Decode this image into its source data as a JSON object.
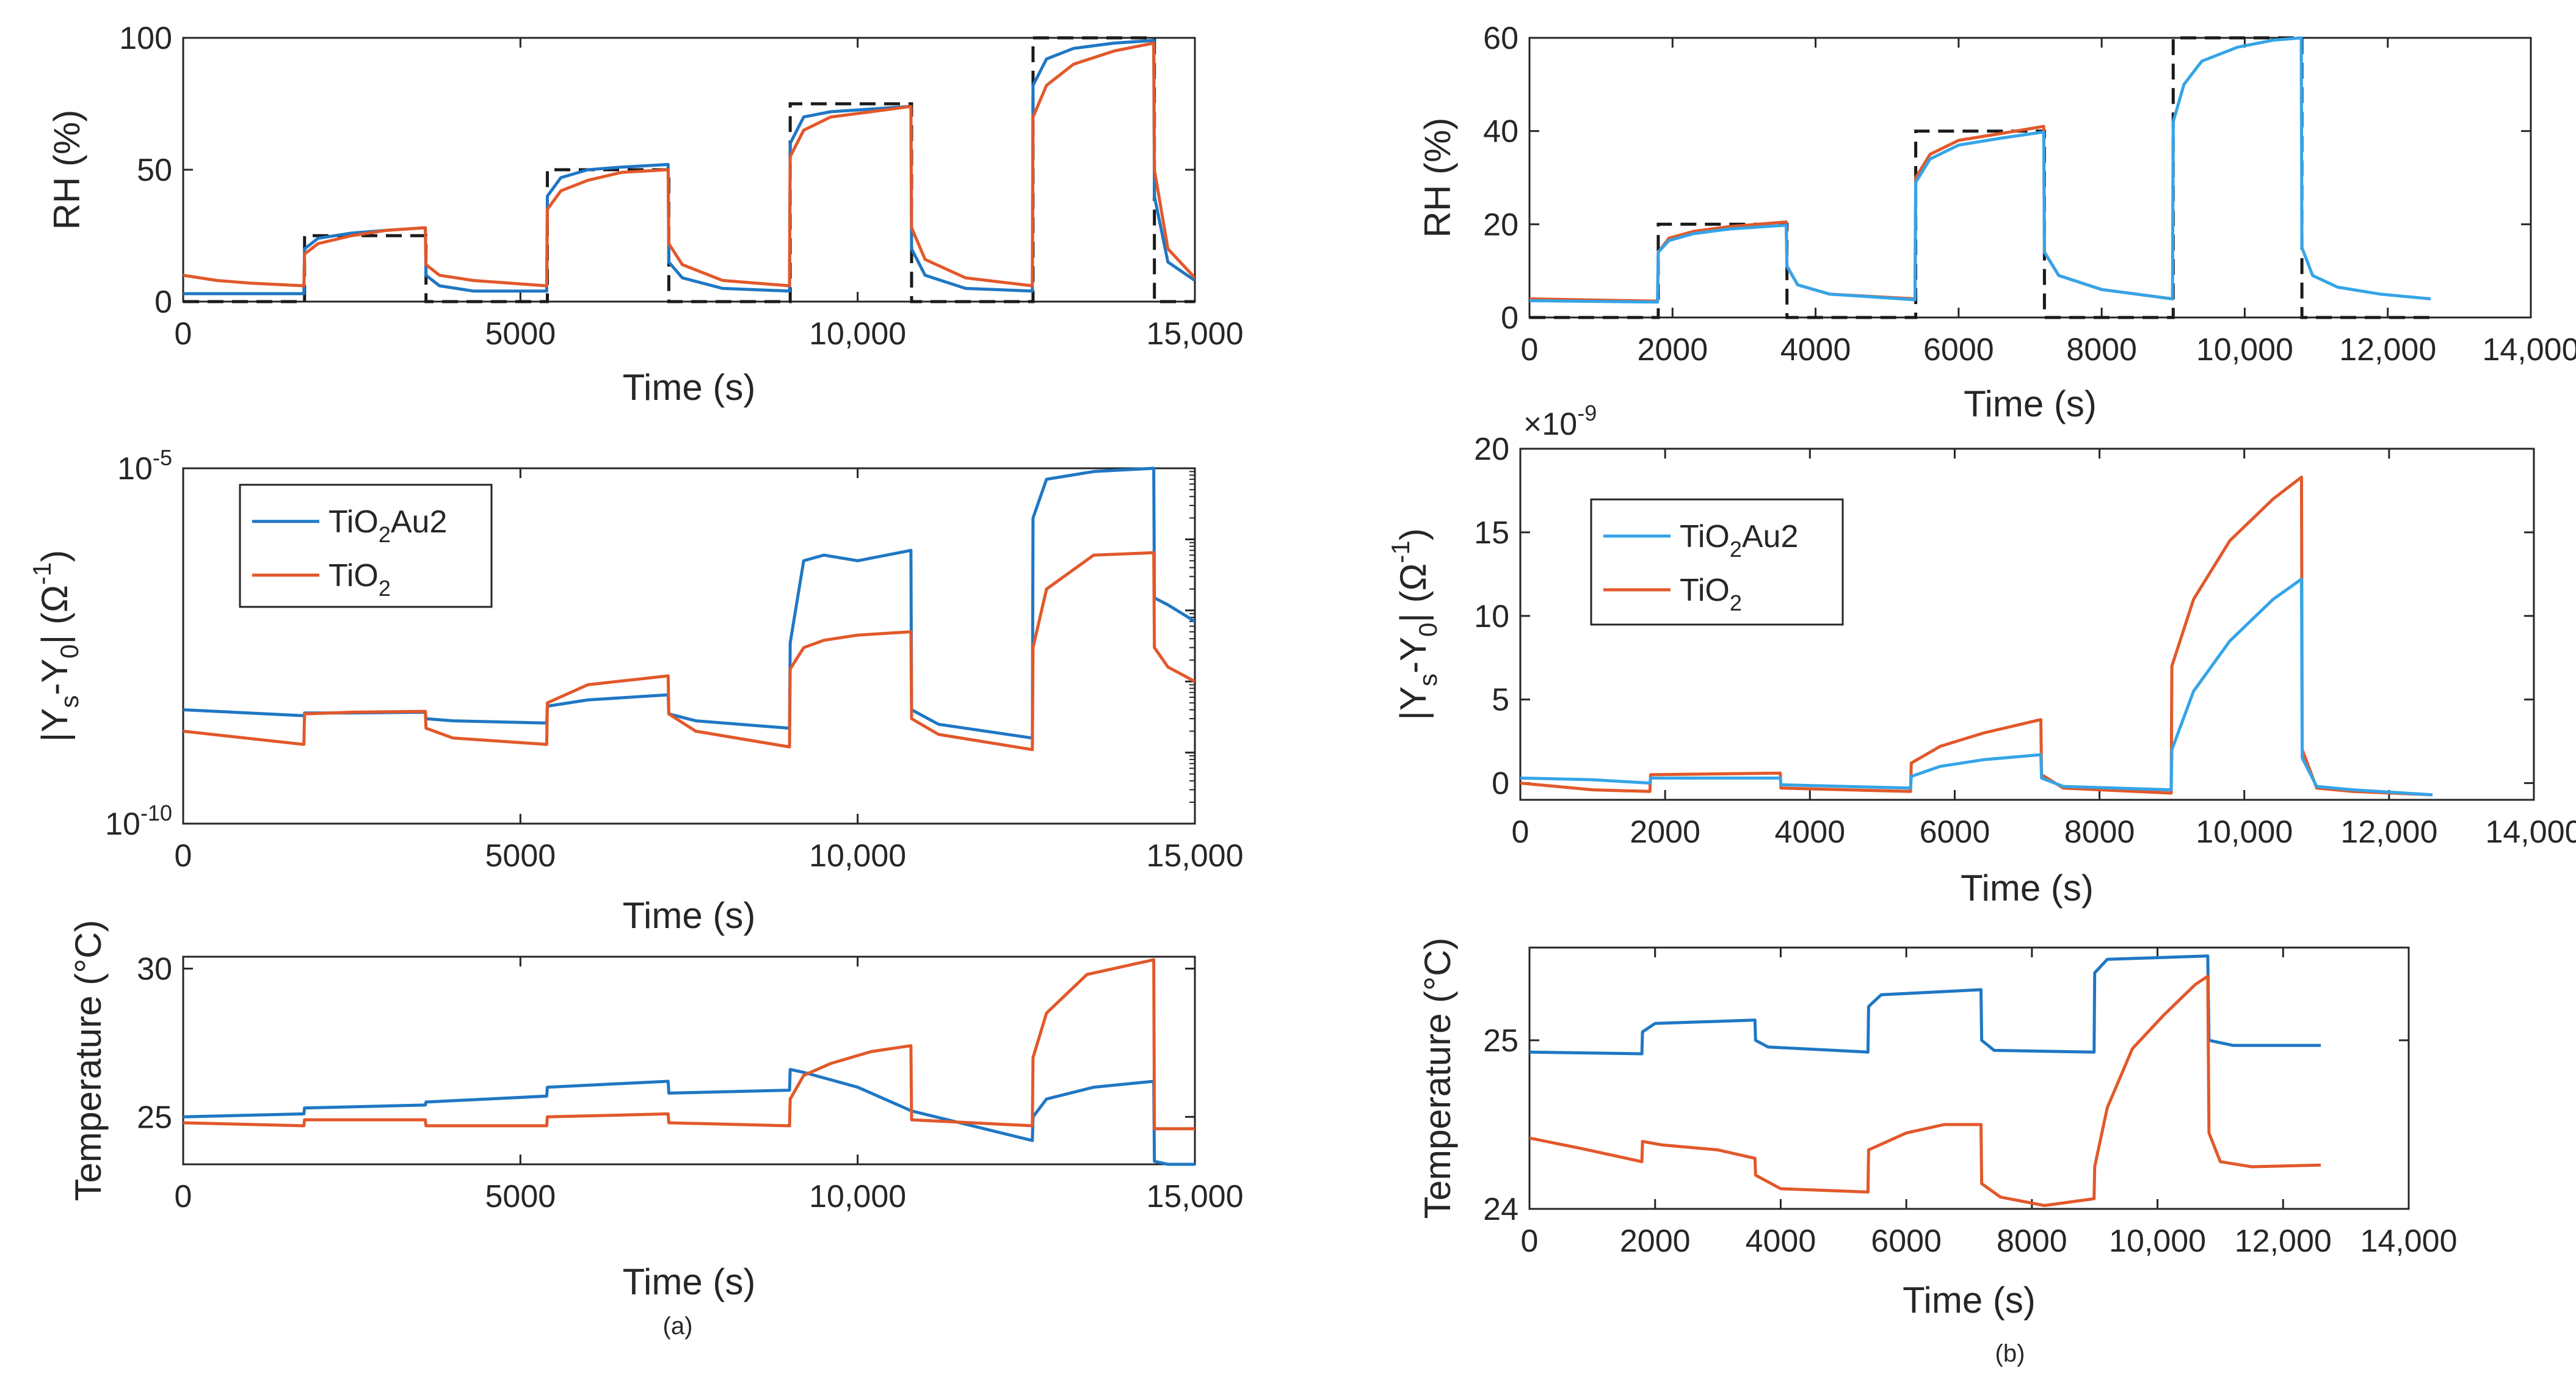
{
  "figure": {
    "panel_labels": [
      "(a)",
      "(b)"
    ]
  },
  "colors": {
    "blue_a": "#1f77c4",
    "blue_b": "#35a4e8",
    "orange": "#e2582a",
    "target": "#1a1a1a",
    "axis": "#262626"
  },
  "chart_data": [
    {
      "id": "a1",
      "type": "line",
      "title": "",
      "xlabel": "Time (s)",
      "ylabel": "RH (%)",
      "xlim": [
        0,
        15000
      ],
      "ylim": [
        0,
        100
      ],
      "yscale": "linear",
      "xticks": [
        0,
        5000,
        10000,
        15000
      ],
      "xtick_labels": [
        "0",
        "5000",
        "10,000",
        "15,000"
      ],
      "yticks": [
        0,
        50,
        100
      ],
      "ytick_labels": [
        "0",
        "50",
        "100"
      ],
      "target_profile": {
        "name": "RH setpoint",
        "style": "dashed",
        "x": [
          0,
          1800,
          1800,
          3600,
          3600,
          5400,
          5400,
          7200,
          7200,
          9000,
          9000,
          10800,
          10800,
          12600,
          12600,
          14400,
          14400,
          15000
        ],
        "y": [
          0,
          0,
          25,
          25,
          0,
          0,
          50,
          50,
          0,
          0,
          75,
          75,
          0,
          0,
          100,
          100,
          0,
          0
        ]
      },
      "series": [
        {
          "name": "TiO2Au2",
          "color_key": "blue_a",
          "x": [
            0,
            1790,
            1800,
            2000,
            2500,
            3000,
            3590,
            3600,
            3800,
            4300,
            5390,
            5400,
            5600,
            6000,
            6500,
            7190,
            7200,
            7400,
            8000,
            8990,
            9000,
            9200,
            9600,
            10200,
            10790,
            10800,
            11000,
            11600,
            12590,
            12600,
            12800,
            13200,
            13800,
            14390,
            14400,
            14600,
            15000
          ],
          "y": [
            3,
            3,
            20,
            24,
            26,
            27,
            28,
            10,
            6,
            4,
            4,
            40,
            47,
            50,
            51,
            52,
            15,
            9,
            5,
            4,
            60,
            70,
            72,
            73,
            74,
            20,
            10,
            5,
            4,
            82,
            92,
            96,
            98,
            99,
            40,
            15,
            8
          ]
        },
        {
          "name": "TiO2",
          "color_key": "orange",
          "x": [
            0,
            500,
            1000,
            1790,
            1800,
            2000,
            2500,
            3000,
            3590,
            3600,
            3800,
            4300,
            5390,
            5400,
            5600,
            6000,
            6500,
            7190,
            7200,
            7400,
            8000,
            8990,
            9000,
            9200,
            9600,
            10200,
            10790,
            10800,
            11000,
            11600,
            12590,
            12600,
            12800,
            13200,
            13800,
            14390,
            14400,
            14600,
            15000
          ],
          "y": [
            10,
            8,
            7,
            6,
            18,
            22,
            25,
            27,
            28,
            14,
            10,
            8,
            6,
            35,
            42,
            46,
            49,
            50,
            22,
            14,
            8,
            6,
            55,
            65,
            70,
            72,
            74,
            28,
            16,
            9,
            6,
            70,
            82,
            90,
            95,
            98,
            50,
            20,
            9
          ]
        }
      ]
    },
    {
      "id": "a2",
      "type": "line",
      "title": "",
      "xlabel": "Time (s)",
      "ylabel": "|Yₛ-Y₀| (Ω⁻¹)",
      "xlim": [
        0,
        15000
      ],
      "ylim": [
        1e-10,
        1e-05
      ],
      "yscale": "log",
      "xticks": [
        0,
        5000,
        10000,
        15000
      ],
      "xtick_labels": [
        "0",
        "5000",
        "10,000",
        "15,000"
      ],
      "yticks": [
        1e-10,
        1e-05
      ],
      "ytick_labels": [
        "10⁻¹⁰",
        "10⁻⁵"
      ],
      "legend": {
        "position": "top-left",
        "entries": [
          "TiO₂Au2",
          "TiO₂"
        ]
      },
      "series": [
        {
          "name": "TiO2Au2",
          "color_key": "blue_a",
          "x": [
            0,
            1790,
            1800,
            2500,
            3590,
            3600,
            4000,
            5390,
            5400,
            6000,
            7190,
            7200,
            7600,
            8990,
            9000,
            9200,
            9500,
            10000,
            10790,
            10800,
            11200,
            12590,
            12600,
            12800,
            13500,
            14390,
            14400,
            14600,
            15000
          ],
          "y": [
            4e-09,
            3.3e-09,
            3.6e-09,
            3.6e-09,
            3.7e-09,
            3e-09,
            2.8e-09,
            2.6e-09,
            4.5e-09,
            5.5e-09,
            6.5e-09,
            3.5e-09,
            2.8e-09,
            2.2e-09,
            3.5e-08,
            5e-07,
            6e-07,
            5e-07,
            7e-07,
            4e-09,
            2.5e-09,
            1.6e-09,
            2e-06,
            7e-06,
            9e-06,
            1e-05,
            1.5e-07,
            1.2e-07,
            7e-08
          ]
        },
        {
          "name": "TiO2",
          "color_key": "orange",
          "x": [
            0,
            1790,
            1800,
            2500,
            3590,
            3600,
            4000,
            5390,
            5400,
            6000,
            7190,
            7200,
            7600,
            8990,
            9000,
            9200,
            9500,
            10000,
            10790,
            10800,
            11200,
            12590,
            12600,
            12800,
            13500,
            14390,
            14400,
            14600,
            15000
          ],
          "y": [
            2e-09,
            1.3e-09,
            3.5e-09,
            3.7e-09,
            3.8e-09,
            2.2e-09,
            1.6e-09,
            1.3e-09,
            5e-09,
            9e-09,
            1.2e-08,
            3.5e-09,
            2e-09,
            1.2e-09,
            1.5e-08,
            3e-08,
            3.8e-08,
            4.5e-08,
            5e-08,
            3e-09,
            1.8e-09,
            1.1e-09,
            3e-08,
            2e-07,
            6e-07,
            6.5e-07,
            3e-08,
            1.6e-08,
            1e-08
          ]
        }
      ]
    },
    {
      "id": "a3",
      "type": "line",
      "title": "",
      "xlabel": "Time (s)",
      "ylabel": "Temperature (°C)",
      "xlim": [
        0,
        15000
      ],
      "ylim": [
        23.4,
        30.4
      ],
      "yscale": "linear",
      "xticks": [
        0,
        5000,
        10000,
        15000
      ],
      "xtick_labels": [
        "0",
        "5000",
        "10,000",
        "15,000"
      ],
      "yticks": [
        25,
        30
      ],
      "ytick_labels": [
        "25",
        "30"
      ],
      "series": [
        {
          "name": "TiO2Au2",
          "color_key": "blue_a",
          "x": [
            0,
            1790,
            1800,
            3590,
            3600,
            5390,
            5400,
            7190,
            7200,
            8990,
            9000,
            9200,
            10000,
            10800,
            12590,
            12600,
            12800,
            13500,
            14390,
            14400,
            14600,
            15000
          ],
          "y": [
            25.0,
            25.1,
            25.3,
            25.4,
            25.5,
            25.7,
            26.0,
            26.2,
            25.8,
            25.9,
            26.6,
            26.5,
            26.0,
            25.2,
            24.2,
            25.0,
            25.6,
            26.0,
            26.2,
            23.5,
            23.4,
            23.4
          ]
        },
        {
          "name": "TiO2",
          "color_key": "orange",
          "x": [
            0,
            1790,
            1800,
            3590,
            3600,
            5390,
            5400,
            7190,
            7200,
            8990,
            9000,
            9200,
            9600,
            10200,
            10790,
            10800,
            12590,
            12600,
            12800,
            13400,
            14390,
            14400,
            14600,
            15000
          ],
          "y": [
            24.8,
            24.7,
            24.9,
            24.9,
            24.7,
            24.7,
            25.0,
            25.1,
            24.8,
            24.7,
            25.6,
            26.4,
            26.8,
            27.2,
            27.4,
            24.9,
            24.7,
            27.0,
            28.5,
            29.8,
            30.3,
            24.6,
            24.6,
            24.6
          ]
        }
      ]
    },
    {
      "id": "b1",
      "type": "line",
      "title": "",
      "xlabel": "Time (s)",
      "ylabel": "RH (%)",
      "xlim": [
        0,
        14000
      ],
      "ylim": [
        0,
        60
      ],
      "yscale": "linear",
      "xticks": [
        0,
        2000,
        4000,
        6000,
        8000,
        10000,
        12000,
        14000
      ],
      "xtick_labels": [
        "0",
        "2000",
        "4000",
        "6000",
        "8000",
        "10,000",
        "12,000",
        "14,000"
      ],
      "yticks": [
        0,
        20,
        40,
        60
      ],
      "ytick_labels": [
        "0",
        "20",
        "40",
        "60"
      ],
      "target_profile": {
        "name": "RH setpoint",
        "style": "dashed",
        "x": [
          0,
          1800,
          1800,
          3600,
          3600,
          5400,
          5400,
          7200,
          7200,
          9000,
          9000,
          10800,
          10800,
          12600
        ],
        "y": [
          0,
          0,
          20,
          20,
          0,
          0,
          40,
          40,
          0,
          0,
          60,
          60,
          0,
          0
        ]
      },
      "series": [
        {
          "name": "TiO2",
          "color_key": "orange",
          "x": [
            0,
            1790,
            1800,
            1950,
            2300,
            2800,
            3590,
            3600,
            3750,
            4200,
            5390,
            5400,
            5600,
            6000,
            6600,
            7190,
            7200,
            7400,
            8000,
            8990
          ],
          "y": [
            4,
            3.5,
            14,
            17,
            18.5,
            19.5,
            20.5,
            11,
            7,
            5,
            4,
            30,
            35,
            38,
            39.5,
            41,
            14,
            9,
            6,
            4
          ]
        },
        {
          "name": "TiO2Au2",
          "color_key": "blue_b",
          "x": [
            0,
            1790,
            1800,
            1950,
            2300,
            2800,
            3590,
            3600,
            3750,
            4200,
            5390,
            5400,
            5600,
            6000,
            6600,
            7190,
            7200,
            7400,
            8000,
            8990,
            9000,
            9150,
            9400,
            9900,
            10400,
            10790,
            10800,
            10950,
            11300,
            11900,
            12600
          ],
          "y": [
            3.6,
            3.3,
            14,
            16.5,
            18,
            19,
            19.8,
            11,
            7,
            5,
            3.8,
            29,
            34,
            37,
            38.5,
            39.8,
            14,
            9,
            6,
            4,
            42,
            50,
            55,
            58,
            59.5,
            60,
            15,
            9,
            6.5,
            5,
            4
          ]
        }
      ]
    },
    {
      "id": "b2",
      "type": "line",
      "title": "",
      "xlabel": "Time (s)",
      "ylabel": "|Yₛ-Y₀| (Ω⁻¹)",
      "xlim": [
        0,
        14000
      ],
      "ylim": [
        -1,
        20
      ],
      "yscale": "linear",
      "scale_note": "×10⁻⁹",
      "xticks": [
        0,
        2000,
        4000,
        6000,
        8000,
        10000,
        12000,
        14000
      ],
      "xtick_labels": [
        "0",
        "2000",
        "4000",
        "6000",
        "8000",
        "10,000",
        "12,000",
        "14,000"
      ],
      "yticks": [
        0,
        5,
        10,
        15,
        20
      ],
      "ytick_labels": [
        "0",
        "5",
        "10",
        "15",
        "20"
      ],
      "legend": {
        "position": "top-left",
        "entries": [
          "TiO₂Au2",
          "TiO₂"
        ]
      },
      "series": [
        {
          "name": "TiO2",
          "color_key": "orange",
          "x": [
            0,
            1000,
            1790,
            1800,
            3590,
            3600,
            5390,
            5400,
            5800,
            6400,
            7190,
            7200,
            7500,
            8990,
            9000,
            9300,
            9800,
            10400,
            10790,
            10800,
            11000,
            11500,
            12600
          ],
          "y": [
            0,
            -0.4,
            -0.5,
            0.5,
            0.6,
            -0.3,
            -0.5,
            1.2,
            2.2,
            3,
            3.8,
            0.5,
            -0.3,
            -0.6,
            7,
            11,
            14.5,
            17,
            18.3,
            2,
            -0.3,
            -0.5,
            -0.7
          ]
        },
        {
          "name": "TiO2Au2",
          "color_key": "blue_b",
          "x": [
            0,
            1000,
            1790,
            1800,
            3590,
            3600,
            5390,
            5400,
            5800,
            6400,
            7190,
            7200,
            7500,
            8990,
            9000,
            9300,
            9800,
            10400,
            10790,
            10800,
            11000,
            11500,
            12600
          ],
          "y": [
            0.3,
            0.2,
            0,
            0.3,
            0.3,
            -0.1,
            -0.3,
            0.4,
            1,
            1.4,
            1.7,
            0.3,
            -0.2,
            -0.4,
            2,
            5.5,
            8.5,
            11,
            12.2,
            1.5,
            -0.2,
            -0.4,
            -0.7
          ]
        }
      ]
    },
    {
      "id": "b3",
      "type": "line",
      "title": "",
      "xlabel": "Time (s)",
      "ylabel": "Temperature (°C)",
      "xlim": [
        0,
        14000
      ],
      "ylim": [
        24,
        25.55
      ],
      "yscale": "linear",
      "xticks": [
        0,
        2000,
        4000,
        6000,
        8000,
        10000,
        12000,
        14000
      ],
      "xtick_labels": [
        "0",
        "2000",
        "4000",
        "6000",
        "8000",
        "10,000",
        "12,000",
        "14,000"
      ],
      "yticks": [
        24,
        25
      ],
      "ytick_labels": [
        "24",
        "25"
      ],
      "series": [
        {
          "name": "TiO2Au2",
          "color_key": "blue_a",
          "x": [
            0,
            1790,
            1800,
            2000,
            3590,
            3600,
            3800,
            5390,
            5400,
            5600,
            7190,
            7200,
            7400,
            8990,
            9000,
            9200,
            10800,
            10820,
            11200,
            12600
          ],
          "y": [
            24.93,
            24.92,
            25.05,
            25.1,
            25.12,
            25.0,
            24.96,
            24.93,
            25.2,
            25.27,
            25.3,
            25.0,
            24.94,
            24.93,
            25.4,
            25.48,
            25.5,
            25.0,
            24.97,
            24.97
          ]
        },
        {
          "name": "TiO2",
          "color_key": "orange",
          "x": [
            0,
            800,
            1790,
            1800,
            2100,
            3000,
            3590,
            3600,
            4000,
            5390,
            5400,
            5700,
            6000,
            6600,
            7190,
            7200,
            7500,
            8200,
            8990,
            9000,
            9200,
            9600,
            10100,
            10600,
            10800,
            10820,
            11000,
            11500,
            12600
          ],
          "y": [
            24.42,
            24.36,
            24.28,
            24.4,
            24.38,
            24.35,
            24.3,
            24.2,
            24.12,
            24.1,
            24.35,
            24.4,
            24.45,
            24.5,
            24.5,
            24.15,
            24.07,
            24.02,
            24.06,
            24.25,
            24.6,
            24.95,
            25.15,
            25.33,
            25.38,
            24.45,
            24.28,
            24.25,
            24.26
          ]
        }
      ]
    }
  ]
}
